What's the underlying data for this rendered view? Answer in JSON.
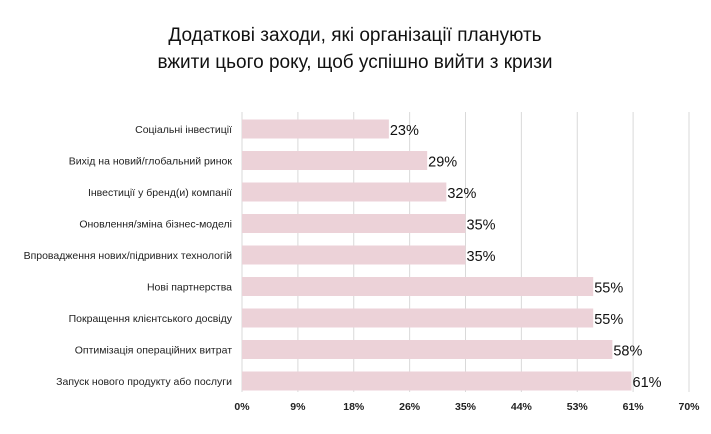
{
  "chart_data": {
    "type": "bar",
    "orientation": "horizontal",
    "title_lines": [
      "Додаткові заходи, які організації планують",
      "вжити цього року, щоб успішно вийти з кризи"
    ],
    "categories": [
      "Соціальні інвестиції",
      "Вихід на новий/глобальний ринок",
      "Інвестиції у бренд(и) компанії",
      "Оновлення/зміна бізнес-моделі",
      "Впровадження нових/підривних технологій",
      "Нові партнерства",
      "Покращення клієнтського досвіду",
      "Оптимізація операційних витрат",
      "Запуск нового продукту або послуги"
    ],
    "values": [
      23,
      29,
      32,
      35,
      35,
      55,
      55,
      58,
      61
    ],
    "value_labels": [
      "23%",
      "29%",
      "32%",
      "35%",
      "35%",
      "55%",
      "55%",
      "58%",
      "61%"
    ],
    "x_ticks": [
      0,
      8.75,
      17.5,
      26.25,
      35,
      43.75,
      52.5,
      61.25,
      70
    ],
    "x_tick_labels": [
      "0%",
      "9%",
      "18%",
      "26%",
      "35%",
      "44%",
      "53%",
      "61%",
      "70%"
    ],
    "xlim": [
      0,
      70
    ],
    "grid": "vertical",
    "bar_color": "#ecd2d8",
    "grid_color": "#d9d9d9"
  }
}
